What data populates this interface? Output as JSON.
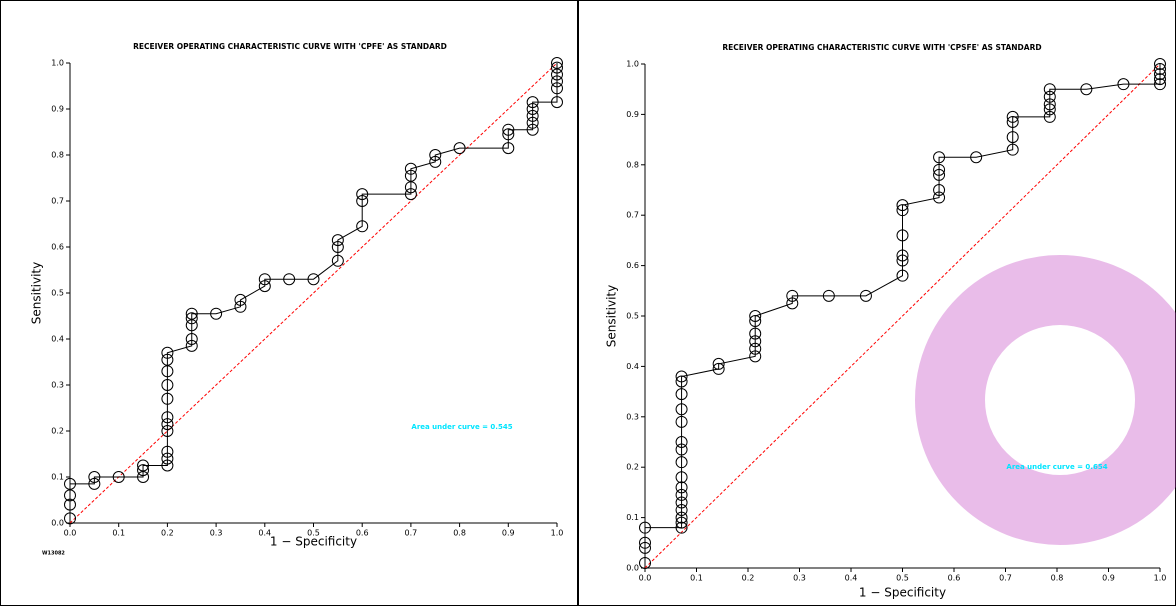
{
  "chart_data": [
    {
      "type": "line",
      "title": "RECEIVER OPERATING CHARACTERISTIC CURVE WITH 'CPFE' AS STANDARD",
      "xlabel": "1 − Specificity",
      "ylabel": "Sensitivity",
      "annotation": "Area under curve = 0.545",
      "annotation_color": "#00e5ff",
      "footnote": "W13082",
      "color": "#000000",
      "reference_color": "#ff0000",
      "xlim": [
        0,
        1
      ],
      "ylim": [
        0,
        1
      ],
      "xticks": [
        {
          "value": 0,
          "label": "0.0"
        },
        0.1,
        0.2,
        0.3,
        0.4,
        0.5,
        0.6,
        0.7,
        0.8,
        0.9,
        {
          "value": 1,
          "label": "1.0"
        }
      ],
      "yticks": [
        {
          "value": 0,
          "label": "0.0"
        },
        0.1,
        0.2,
        0.3,
        0.4,
        0.5,
        0.6,
        0.7,
        0.8,
        0.9,
        {
          "value": 1,
          "label": "1.0"
        }
      ],
      "x": [
        0,
        0,
        0,
        0,
        0.05,
        0.05,
        0.1,
        0.15,
        0.15,
        0.15,
        0.2,
        0.2,
        0.2,
        0.2,
        0.2,
        0.2,
        0.2,
        0.2,
        0.2,
        0.2,
        0.2,
        0.25,
        0.25,
        0.25,
        0.25,
        0.25,
        0.3,
        0.35,
        0.35,
        0.4,
        0.4,
        0.45,
        0.5,
        0.55,
        0.55,
        0.55,
        0.6,
        0.6,
        0.6,
        0.7,
        0.7,
        0.7,
        0.7,
        0.75,
        0.75,
        0.8,
        0.9,
        0.9,
        0.9,
        0.95,
        0.95,
        0.95,
        0.95,
        0.95,
        1,
        1,
        1,
        1,
        1,
        1
      ],
      "values": [
        0.01,
        0.04,
        0.06,
        0.085,
        0.085,
        0.1,
        0.1,
        0.1,
        0.115,
        0.125,
        0.125,
        0.14,
        0.155,
        0.2,
        0.215,
        0.23,
        0.27,
        0.3,
        0.33,
        0.355,
        0.37,
        0.385,
        0.4,
        0.43,
        0.445,
        0.455,
        0.455,
        0.47,
        0.485,
        0.515,
        0.53,
        0.53,
        0.53,
        0.57,
        0.6,
        0.615,
        0.645,
        0.7,
        0.715,
        0.715,
        0.73,
        0.755,
        0.77,
        0.785,
        0.8,
        0.815,
        0.815,
        0.845,
        0.855,
        0.855,
        0.87,
        0.885,
        0.9,
        0.915,
        0.915,
        0.945,
        0.96,
        0.975,
        0.99,
        1.0
      ]
    },
    {
      "type": "line",
      "title": "RECEIVER OPERATING CHARACTERISTIC CURVE WITH 'CPSFE' AS STANDARD",
      "xlabel": "1 − Specificity",
      "ylabel": "Sensitivity",
      "annotation": "Area under curve = 0.654",
      "annotation_color": "#00e5ff",
      "color": "#000000",
      "reference_color": "#ff0000",
      "xlim": [
        0,
        1
      ],
      "ylim": [
        0,
        1
      ],
      "xticks": [
        {
          "value": 0,
          "label": "0.0"
        },
        0.1,
        0.2,
        0.3,
        0.4,
        0.5,
        0.6,
        0.7,
        0.8,
        0.9,
        {
          "value": 1,
          "label": "1.0"
        }
      ],
      "yticks": [
        {
          "value": 0,
          "label": "0.0"
        },
        0.1,
        0.2,
        0.3,
        0.4,
        0.5,
        0.6,
        0.7,
        0.8,
        0.9,
        {
          "value": 1,
          "label": "1.0"
        }
      ],
      "x": [
        0,
        0,
        0,
        0,
        0.071,
        0.071,
        0.071,
        0.071,
        0.071,
        0.071,
        0.071,
        0.071,
        0.071,
        0.071,
        0.071,
        0.071,
        0.071,
        0.071,
        0.071,
        0.071,
        0.143,
        0.143,
        0.214,
        0.214,
        0.214,
        0.214,
        0.214,
        0.214,
        0.286,
        0.286,
        0.357,
        0.429,
        0.5,
        0.5,
        0.5,
        0.5,
        0.5,
        0.5,
        0.571,
        0.571,
        0.571,
        0.571,
        0.571,
        0.643,
        0.714,
        0.714,
        0.714,
        0.714,
        0.786,
        0.786,
        0.786,
        0.786,
        0.786,
        0.857,
        0.929,
        1,
        1,
        1,
        1,
        1
      ],
      "values": [
        0.01,
        0.04,
        0.05,
        0.08,
        0.08,
        0.09,
        0.1,
        0.115,
        0.13,
        0.145,
        0.16,
        0.18,
        0.21,
        0.235,
        0.25,
        0.29,
        0.315,
        0.345,
        0.37,
        0.38,
        0.395,
        0.405,
        0.42,
        0.435,
        0.45,
        0.465,
        0.49,
        0.5,
        0.525,
        0.54,
        0.54,
        0.54,
        0.58,
        0.61,
        0.62,
        0.66,
        0.71,
        0.72,
        0.735,
        0.75,
        0.78,
        0.79,
        0.815,
        0.815,
        0.83,
        0.855,
        0.885,
        0.895,
        0.895,
        0.91,
        0.92,
        0.935,
        0.95,
        0.95,
        0.96,
        0.96,
        0.97,
        0.98,
        0.99,
        1.0
      ]
    }
  ]
}
